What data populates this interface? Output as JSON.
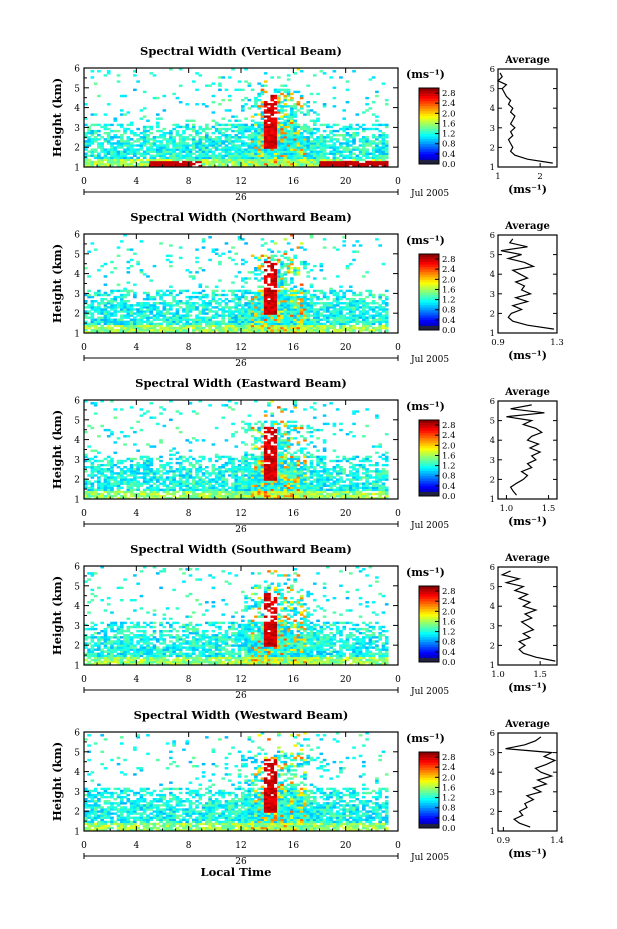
{
  "chart_data": [
    {
      "type": "heatmap",
      "title": "Spectral Width (Vertical Beam)",
      "ylabel": "Height (km)",
      "ylim": [
        1,
        6
      ],
      "yticks": [
        "1",
        "2",
        "3",
        "4",
        "5",
        "6"
      ],
      "xlim": [
        0,
        24
      ],
      "xticks": [
        "0",
        "4",
        "8",
        "12",
        "16",
        "20",
        "0"
      ],
      "date_label": "26",
      "month_label": "Jul 2005",
      "colorbar": {
        "unit": "(ms⁻¹)",
        "ticks": [
          "0.0",
          "0.4",
          "0.8",
          "1.2",
          "1.6",
          "2.0",
          "2.4",
          "2.8"
        ],
        "range": [
          0.0,
          3.0
        ]
      },
      "average": {
        "title": "Average",
        "xlabel": "(ms⁻¹)",
        "xticks": [
          "1",
          "2"
        ],
        "xlim": [
          1,
          2.4
        ],
        "yticks": [
          "1",
          "2",
          "3",
          "4",
          "5",
          "6"
        ],
        "heights": [
          1.2,
          1.4,
          1.6,
          1.8,
          2.0,
          2.2,
          2.4,
          2.6,
          2.8,
          3.0,
          3.2,
          3.4,
          3.6,
          3.8,
          4.0,
          4.2,
          4.4,
          4.6,
          4.8,
          5.0,
          5.2,
          5.4,
          5.6,
          5.8
        ],
        "values": [
          2.3,
          1.7,
          1.4,
          1.3,
          1.35,
          1.3,
          1.25,
          1.35,
          1.3,
          1.4,
          1.3,
          1.35,
          1.4,
          1.3,
          1.35,
          1.25,
          1.3,
          1.2,
          1.15,
          1.1,
          1.2,
          1.0,
          1.1,
          1.05
        ]
      }
    },
    {
      "type": "heatmap",
      "title": "Spectral Width (Northward Beam)",
      "ylabel": "Height (km)",
      "ylim": [
        1,
        6
      ],
      "yticks": [
        "1",
        "2",
        "3",
        "4",
        "5",
        "6"
      ],
      "xlim": [
        0,
        24
      ],
      "xticks": [
        "0",
        "4",
        "8",
        "12",
        "16",
        "20",
        "0"
      ],
      "date_label": "26",
      "month_label": "Jul 2005",
      "colorbar": {
        "unit": "(ms⁻¹)",
        "ticks": [
          "0.0",
          "0.4",
          "0.8",
          "1.2",
          "1.6",
          "2.0",
          "2.4",
          "2.8"
        ],
        "range": [
          0.0,
          3.0
        ]
      },
      "average": {
        "title": "Average",
        "xlabel": "(ms⁻¹)",
        "xticks": [
          "0.9",
          "1.3"
        ],
        "xlim": [
          0.9,
          1.3
        ],
        "yticks": [
          "1",
          "2",
          "3",
          "4",
          "5",
          "6"
        ],
        "heights": [
          1.2,
          1.4,
          1.6,
          1.8,
          2.0,
          2.2,
          2.4,
          2.6,
          2.8,
          3.0,
          3.2,
          3.4,
          3.6,
          3.8,
          4.0,
          4.2,
          4.4,
          4.6,
          4.8,
          5.0,
          5.2,
          5.4,
          5.6,
          5.8
        ],
        "values": [
          1.28,
          1.1,
          1.0,
          0.97,
          0.99,
          1.06,
          1.0,
          1.1,
          1.02,
          1.12,
          1.06,
          1.08,
          1.02,
          1.1,
          1.05,
          1.0,
          1.14,
          1.08,
          0.97,
          1.06,
          0.92,
          1.1,
          0.98,
          1.0
        ]
      }
    },
    {
      "type": "heatmap",
      "title": "Spectral Width (Eastward Beam)",
      "ylabel": "Height (km)",
      "ylim": [
        1,
        6
      ],
      "yticks": [
        "1",
        "2",
        "3",
        "4",
        "5",
        "6"
      ],
      "xlim": [
        0,
        24
      ],
      "xticks": [
        "0",
        "4",
        "8",
        "12",
        "16",
        "20",
        "0"
      ],
      "date_label": "26",
      "month_label": "Jul 2005",
      "colorbar": {
        "unit": "(ms⁻¹)",
        "ticks": [
          "0.0",
          "0.4",
          "0.8",
          "1.2",
          "1.6",
          "2.0",
          "2.4",
          "2.8"
        ],
        "range": [
          0.0,
          3.0
        ]
      },
      "average": {
        "title": "Average",
        "xlabel": "(ms⁻¹)",
        "xticks": [
          "1.0",
          "1.5"
        ],
        "xlim": [
          0.9,
          1.6
        ],
        "yticks": [
          "1",
          "2",
          "3",
          "4",
          "5",
          "6"
        ],
        "heights": [
          1.2,
          1.4,
          1.6,
          1.8,
          2.0,
          2.2,
          2.4,
          2.6,
          2.8,
          3.0,
          3.2,
          3.4,
          3.6,
          3.8,
          4.0,
          4.2,
          4.4,
          4.6,
          4.8,
          5.0,
          5.2,
          5.4,
          5.6,
          5.8
        ],
        "values": [
          1.12,
          1.08,
          1.05,
          1.12,
          1.2,
          1.25,
          1.18,
          1.3,
          1.25,
          1.35,
          1.3,
          1.4,
          1.28,
          1.38,
          1.25,
          1.3,
          1.42,
          1.35,
          1.2,
          1.3,
          1.0,
          1.45,
          1.05,
          1.3
        ]
      }
    },
    {
      "type": "heatmap",
      "title": "Spectral Width (Southward Beam)",
      "ylabel": "Height (km)",
      "ylim": [
        1,
        6
      ],
      "yticks": [
        "1",
        "2",
        "3",
        "4",
        "5",
        "6"
      ],
      "xlim": [
        0,
        24
      ],
      "xticks": [
        "0",
        "4",
        "8",
        "12",
        "16",
        "20",
        "0"
      ],
      "date_label": "26",
      "month_label": "Jul 2005",
      "colorbar": {
        "unit": "(ms⁻¹)",
        "ticks": [
          "0.0",
          "0.4",
          "0.8",
          "1.2",
          "1.6",
          "2.0",
          "2.4",
          "2.8"
        ],
        "range": [
          0.0,
          3.0
        ]
      },
      "average": {
        "title": "Average",
        "xlabel": "(ms⁻¹)",
        "xticks": [
          "1.0",
          "1.5"
        ],
        "xlim": [
          1.0,
          1.7
        ],
        "yticks": [
          "1",
          "2",
          "3",
          "4",
          "5",
          "6"
        ],
        "heights": [
          1.2,
          1.4,
          1.6,
          1.8,
          2.0,
          2.2,
          2.4,
          2.6,
          2.8,
          3.0,
          3.2,
          3.4,
          3.6,
          3.8,
          4.0,
          4.2,
          4.4,
          4.6,
          4.8,
          5.0,
          5.2,
          5.4,
          5.6,
          5.8
        ],
        "values": [
          1.68,
          1.45,
          1.3,
          1.25,
          1.32,
          1.25,
          1.38,
          1.3,
          1.42,
          1.35,
          1.28,
          1.4,
          1.32,
          1.45,
          1.3,
          1.38,
          1.25,
          1.35,
          1.2,
          1.3,
          1.1,
          1.25,
          1.05,
          1.15
        ]
      }
    },
    {
      "type": "heatmap",
      "title": "Spectral Width (Westward Beam)",
      "ylabel": "Height (km)",
      "ylim": [
        1,
        6
      ],
      "yticks": [
        "1",
        "2",
        "3",
        "4",
        "5",
        "6"
      ],
      "xlim": [
        0,
        24
      ],
      "xticks": [
        "0",
        "4",
        "8",
        "12",
        "16",
        "20",
        "0"
      ],
      "date_label": "26",
      "month_label": "Jul 2005",
      "xlabel": "Local Time",
      "colorbar": {
        "unit": "(ms⁻¹)",
        "ticks": [
          "0.0",
          "0.4",
          "0.8",
          "1.2",
          "1.6",
          "2.0",
          "2.4",
          "2.8"
        ],
        "range": [
          0.0,
          3.0
        ]
      },
      "average": {
        "title": "Average",
        "xlabel": "(ms⁻¹)",
        "xticks": [
          "0.9",
          "1.4"
        ],
        "xlim": [
          0.85,
          1.4
        ],
        "yticks": [
          "1",
          "2",
          "3",
          "4",
          "5",
          "6"
        ],
        "heights": [
          1.2,
          1.4,
          1.6,
          1.8,
          2.0,
          2.2,
          2.4,
          2.6,
          2.8,
          3.0,
          3.2,
          3.4,
          3.6,
          3.8,
          4.0,
          4.2,
          4.4,
          4.6,
          4.8,
          5.0,
          5.2,
          5.4,
          5.6,
          5.8
        ],
        "values": [
          1.15,
          1.05,
          1.0,
          1.08,
          1.05,
          1.12,
          1.1,
          1.18,
          1.12,
          1.25,
          1.18,
          1.3,
          1.22,
          1.35,
          1.25,
          1.2,
          1.3,
          1.38,
          1.28,
          1.35,
          0.92,
          1.1,
          1.2,
          1.25
        ]
      }
    }
  ]
}
